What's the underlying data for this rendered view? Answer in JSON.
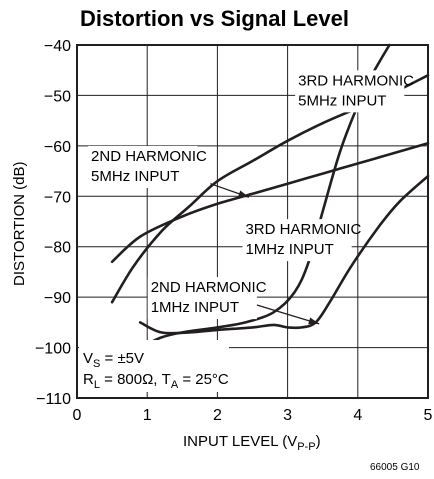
{
  "chart_data": {
    "type": "line",
    "title": "Distortion vs Signal Level",
    "xlabel": "INPUT LEVEL (V",
    "xlabel_sub": "P-P",
    "xlabel_close": ")",
    "ylabel": "DISTORTION (dB)",
    "xlim": [
      0,
      5
    ],
    "ylim": [
      -110,
      -40
    ],
    "x_ticks": [
      0,
      1,
      2,
      3,
      4,
      5
    ],
    "x_tick_labels": [
      "0",
      "1",
      "2",
      "3",
      "4",
      "5"
    ],
    "y_ticks": [
      -40,
      -50,
      -60,
      -70,
      -80,
      -90,
      -100,
      -110
    ],
    "y_tick_labels": [
      "−40",
      "−50",
      "−60",
      "−70",
      "−80",
      "−90",
      "−100",
      "−110"
    ],
    "grid": true,
    "series": [
      {
        "name": "3RD HARMONIC 5MHz INPUT",
        "points": [
          [
            0.5,
            -91
          ],
          [
            0.8,
            -84
          ],
          [
            1.2,
            -77
          ],
          [
            1.6,
            -72
          ],
          [
            2.0,
            -67
          ],
          [
            2.5,
            -63
          ],
          [
            3.0,
            -59
          ],
          [
            3.5,
            -55.5
          ],
          [
            4.0,
            -52.5
          ],
          [
            4.5,
            -49.5
          ],
          [
            5.0,
            -46
          ]
        ]
      },
      {
        "name": "2ND HARMONIC 5MHz INPUT",
        "points": [
          [
            0.5,
            -83
          ],
          [
            0.9,
            -78
          ],
          [
            1.5,
            -74
          ],
          [
            2.0,
            -71.5
          ],
          [
            2.5,
            -69.5
          ],
          [
            3.0,
            -67.5
          ],
          [
            3.5,
            -65.5
          ],
          [
            4.0,
            -63.5
          ],
          [
            4.5,
            -61.5
          ],
          [
            5.0,
            -59.5
          ]
        ]
      },
      {
        "name": "3RD HARMONIC 1MHz INPUT",
        "points": [
          [
            0.9,
            -100
          ],
          [
            1.2,
            -98
          ],
          [
            1.5,
            -97
          ],
          [
            2.0,
            -96
          ],
          [
            2.4,
            -95
          ],
          [
            2.8,
            -93
          ],
          [
            3.1,
            -89
          ],
          [
            3.3,
            -83
          ],
          [
            3.5,
            -73
          ],
          [
            3.75,
            -61
          ],
          [
            4.0,
            -52
          ],
          [
            4.2,
            -46
          ],
          [
            4.45,
            -40
          ]
        ]
      },
      {
        "name": "2ND HARMONIC 1MHz INPUT",
        "points": [
          [
            0.9,
            -95
          ],
          [
            1.2,
            -97
          ],
          [
            1.6,
            -97
          ],
          [
            2.0,
            -96.5
          ],
          [
            2.5,
            -96
          ],
          [
            2.8,
            -95.5
          ],
          [
            3.0,
            -96
          ],
          [
            3.2,
            -96
          ],
          [
            3.4,
            -95
          ],
          [
            3.6,
            -91
          ],
          [
            3.9,
            -84
          ],
          [
            4.3,
            -76
          ],
          [
            4.6,
            -71
          ],
          [
            5.0,
            -66
          ]
        ]
      }
    ],
    "labels": [
      {
        "lines": [
          "3RD HARMONIC",
          "5MHz INPUT"
        ],
        "at": [
          3.15,
          -48
        ]
      },
      {
        "lines": [
          "2ND HARMONIC",
          "5MHz INPUT"
        ],
        "at": [
          0.2,
          -63
        ]
      },
      {
        "lines": [
          "3RD HARMONIC",
          "1MHz INPUT"
        ],
        "at": [
          2.4,
          -77.5
        ]
      },
      {
        "lines": [
          "2ND HARMONIC",
          "1MHz INPUT"
        ],
        "at": [
          1.05,
          -89
        ]
      }
    ],
    "arrows": [
      {
        "from": [
          1.9,
          -67.5
        ],
        "to": [
          2.45,
          -70.2
        ]
      },
      {
        "from": [
          2.55,
          -91.5
        ],
        "to": [
          3.45,
          -95.3
        ]
      }
    ],
    "conditions": {
      "line1_main": "V",
      "line1_sub": "S",
      "line1_rest": " = ±5V",
      "line2_main": "R",
      "line2_sub": "L",
      "line2_mid": " = 800Ω, T",
      "line2_sub2": "A",
      "line2_rest": " = 25°C"
    },
    "figure_code": "66005 G10"
  }
}
